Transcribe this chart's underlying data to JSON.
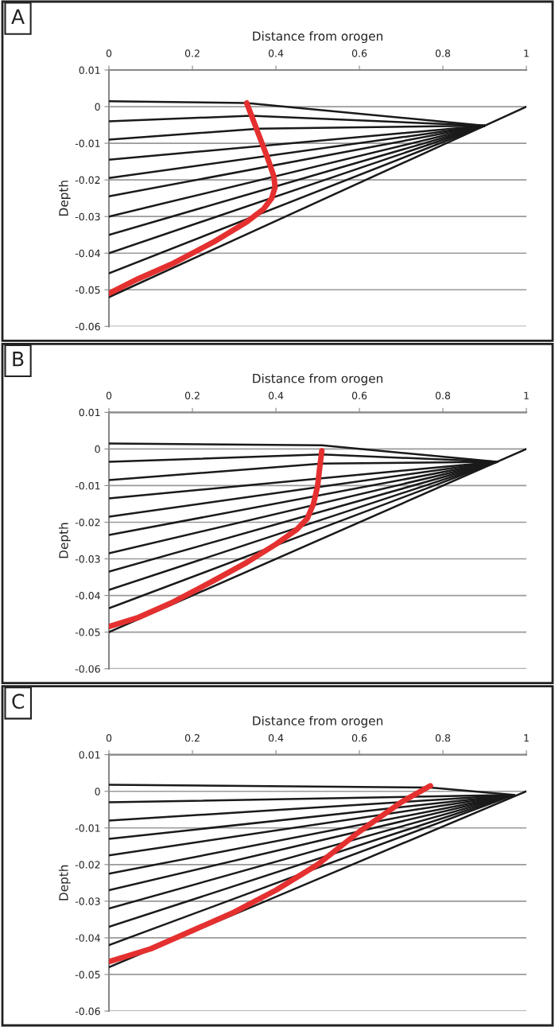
{
  "chart_data": [
    {
      "type": "line",
      "title": "A",
      "xlabel": "Distance from orogen",
      "ylabel": "Depth",
      "xlim": [
        0,
        1
      ],
      "ylim": [
        -0.06,
        0.01
      ],
      "xticks": [
        0,
        0.2,
        0.4,
        0.6,
        0.8,
        1
      ],
      "yticks": [
        {
          "value": 0.01,
          "label": "0.01"
        },
        {
          "value": 0,
          "label": "0"
        },
        {
          "value": -0.01,
          "label": "-0.01"
        },
        {
          "value": -0.02,
          "label": "-0.02"
        },
        {
          "value": -0.03,
          "label": "-0.03"
        },
        {
          "value": -0.04,
          "label": "-0.04"
        },
        {
          "value": -0.05,
          "label": "-0.05"
        },
        {
          "value": -0.06,
          "label": "-0.06"
        }
      ],
      "grid": "y",
      "series": [
        {
          "color": "#1a1a1a",
          "x": [
            0,
            0.33,
            0.9
          ],
          "values": [
            0.0015,
            0.001,
            -0.0052
          ]
        },
        {
          "color": "#1a1a1a",
          "x": [
            0,
            0.34,
            0.9
          ],
          "values": [
            -0.004,
            -0.0025,
            -0.0052
          ]
        },
        {
          "color": "#1a1a1a",
          "x": [
            0,
            0.36,
            0.9
          ],
          "values": [
            -0.009,
            -0.006,
            -0.0052
          ]
        },
        {
          "color": "#1a1a1a",
          "x": [
            0,
            0.9
          ],
          "values": [
            -0.0145,
            -0.0052
          ]
        },
        {
          "color": "#1a1a1a",
          "x": [
            0,
            0.9
          ],
          "values": [
            -0.0195,
            -0.0052
          ]
        },
        {
          "color": "#1a1a1a",
          "x": [
            0,
            0.9
          ],
          "values": [
            -0.0245,
            -0.0052
          ]
        },
        {
          "color": "#1a1a1a",
          "x": [
            0,
            0.9
          ],
          "values": [
            -0.03,
            -0.0052
          ]
        },
        {
          "color": "#1a1a1a",
          "x": [
            0,
            0.9
          ],
          "values": [
            -0.035,
            -0.0052
          ]
        },
        {
          "color": "#1a1a1a",
          "x": [
            0,
            0.9
          ],
          "values": [
            -0.04,
            -0.0052
          ]
        },
        {
          "color": "#1a1a1a",
          "x": [
            0,
            0.9
          ],
          "values": [
            -0.0455,
            -0.0052
          ]
        },
        {
          "color": "#1a1a1a",
          "x": [
            0,
            1
          ],
          "values": [
            -0.052,
            0
          ]
        },
        {
          "color": "#e53030",
          "x": [
            0.33,
            0.34,
            0.36,
            0.38,
            0.395,
            0.398,
            0.39,
            0.37,
            0.33,
            0.25,
            0.15,
            0.07,
            0
          ],
          "values": [
            0.001,
            -0.002,
            -0.008,
            -0.014,
            -0.019,
            -0.022,
            -0.025,
            -0.028,
            -0.0315,
            -0.037,
            -0.043,
            -0.047,
            -0.051
          ]
        }
      ]
    },
    {
      "type": "line",
      "title": "B",
      "xlabel": "Distance from orogen",
      "ylabel": "Depth",
      "xlim": [
        0,
        1
      ],
      "ylim": [
        -0.06,
        0.01
      ],
      "xticks": [
        0,
        0.2,
        0.4,
        0.6,
        0.8,
        1
      ],
      "yticks": [
        {
          "value": 0.01,
          "label": "0.01"
        },
        {
          "value": 0,
          "label": "0"
        },
        {
          "value": -0.01,
          "label": "-0.01"
        },
        {
          "value": -0.02,
          "label": "-0.02"
        },
        {
          "value": -0.03,
          "label": "-0.03"
        },
        {
          "value": -0.04,
          "label": "-0.04"
        },
        {
          "value": -0.05,
          "label": "-0.05"
        },
        {
          "value": -0.06,
          "label": "-0.06"
        }
      ],
      "grid": "y",
      "series": [
        {
          "color": "#1a1a1a",
          "x": [
            0,
            0.51,
            0.93
          ],
          "values": [
            0.0015,
            0.001,
            -0.0035
          ]
        },
        {
          "color": "#1a1a1a",
          "x": [
            0,
            0.51,
            0.93
          ],
          "values": [
            -0.0035,
            -0.0015,
            -0.0035
          ]
        },
        {
          "color": "#1a1a1a",
          "x": [
            0,
            0.51,
            0.93
          ],
          "values": [
            -0.0085,
            -0.004,
            -0.0035
          ]
        },
        {
          "color": "#1a1a1a",
          "x": [
            0,
            0.93
          ],
          "values": [
            -0.0135,
            -0.0035
          ]
        },
        {
          "color": "#1a1a1a",
          "x": [
            0,
            0.93
          ],
          "values": [
            -0.0185,
            -0.0035
          ]
        },
        {
          "color": "#1a1a1a",
          "x": [
            0,
            0.93
          ],
          "values": [
            -0.0235,
            -0.0035
          ]
        },
        {
          "color": "#1a1a1a",
          "x": [
            0,
            0.93
          ],
          "values": [
            -0.0285,
            -0.0035
          ]
        },
        {
          "color": "#1a1a1a",
          "x": [
            0,
            0.93
          ],
          "values": [
            -0.0335,
            -0.0035
          ]
        },
        {
          "color": "#1a1a1a",
          "x": [
            0,
            0.93
          ],
          "values": [
            -0.0385,
            -0.0035
          ]
        },
        {
          "color": "#1a1a1a",
          "x": [
            0,
            0.93
          ],
          "values": [
            -0.0435,
            -0.0035
          ]
        },
        {
          "color": "#1a1a1a",
          "x": [
            0,
            1
          ],
          "values": [
            -0.05,
            0
          ]
        },
        {
          "color": "#e53030",
          "x": [
            0.51,
            0.505,
            0.5,
            0.49,
            0.475,
            0.45,
            0.4,
            0.33,
            0.25,
            0.15,
            0.07,
            0
          ],
          "values": [
            -0.0005,
            -0.005,
            -0.01,
            -0.015,
            -0.019,
            -0.022,
            -0.026,
            -0.031,
            -0.036,
            -0.042,
            -0.046,
            -0.0485
          ]
        }
      ]
    },
    {
      "type": "line",
      "title": "C",
      "xlabel": "Distance from orogen",
      "ylabel": "Depth",
      "xlim": [
        0,
        1
      ],
      "ylim": [
        -0.06,
        0.01
      ],
      "xticks": [
        0,
        0.2,
        0.4,
        0.6,
        0.8,
        1
      ],
      "yticks": [
        {
          "value": 0.01,
          "label": "0.01"
        },
        {
          "value": 0,
          "label": "0"
        },
        {
          "value": -0.01,
          "label": "-0.01"
        },
        {
          "value": -0.02,
          "label": "-0.02"
        },
        {
          "value": -0.03,
          "label": "-0.03"
        },
        {
          "value": -0.04,
          "label": "-0.04"
        },
        {
          "value": -0.05,
          "label": "-0.05"
        },
        {
          "value": -0.06,
          "label": "-0.06"
        }
      ],
      "grid": "y",
      "series": [
        {
          "color": "#1a1a1a",
          "x": [
            0,
            0.77,
            0.97
          ],
          "values": [
            0.0018,
            0.001,
            -0.001
          ]
        },
        {
          "color": "#1a1a1a",
          "x": [
            0,
            0.97
          ],
          "values": [
            -0.003,
            -0.001
          ]
        },
        {
          "color": "#1a1a1a",
          "x": [
            0,
            0.97
          ],
          "values": [
            -0.008,
            -0.001
          ]
        },
        {
          "color": "#1a1a1a",
          "x": [
            0,
            0.97
          ],
          "values": [
            -0.013,
            -0.001
          ]
        },
        {
          "color": "#1a1a1a",
          "x": [
            0,
            0.97
          ],
          "values": [
            -0.0175,
            -0.001
          ]
        },
        {
          "color": "#1a1a1a",
          "x": [
            0,
            0.97
          ],
          "values": [
            -0.0225,
            -0.001
          ]
        },
        {
          "color": "#1a1a1a",
          "x": [
            0,
            0.97
          ],
          "values": [
            -0.027,
            -0.001
          ]
        },
        {
          "color": "#1a1a1a",
          "x": [
            0,
            0.97
          ],
          "values": [
            -0.032,
            -0.001
          ]
        },
        {
          "color": "#1a1a1a",
          "x": [
            0,
            0.97
          ],
          "values": [
            -0.037,
            -0.001
          ]
        },
        {
          "color": "#1a1a1a",
          "x": [
            0,
            0.97
          ],
          "values": [
            -0.042,
            -0.001
          ]
        },
        {
          "color": "#1a1a1a",
          "x": [
            0,
            1
          ],
          "values": [
            -0.048,
            0
          ]
        },
        {
          "color": "#e53030",
          "x": [
            0.77,
            0.7,
            0.6,
            0.5,
            0.4,
            0.3,
            0.2,
            0.1,
            0
          ],
          "values": [
            0.0015,
            -0.003,
            -0.011,
            -0.02,
            -0.027,
            -0.033,
            -0.038,
            -0.043,
            -0.0465
          ]
        }
      ]
    }
  ]
}
